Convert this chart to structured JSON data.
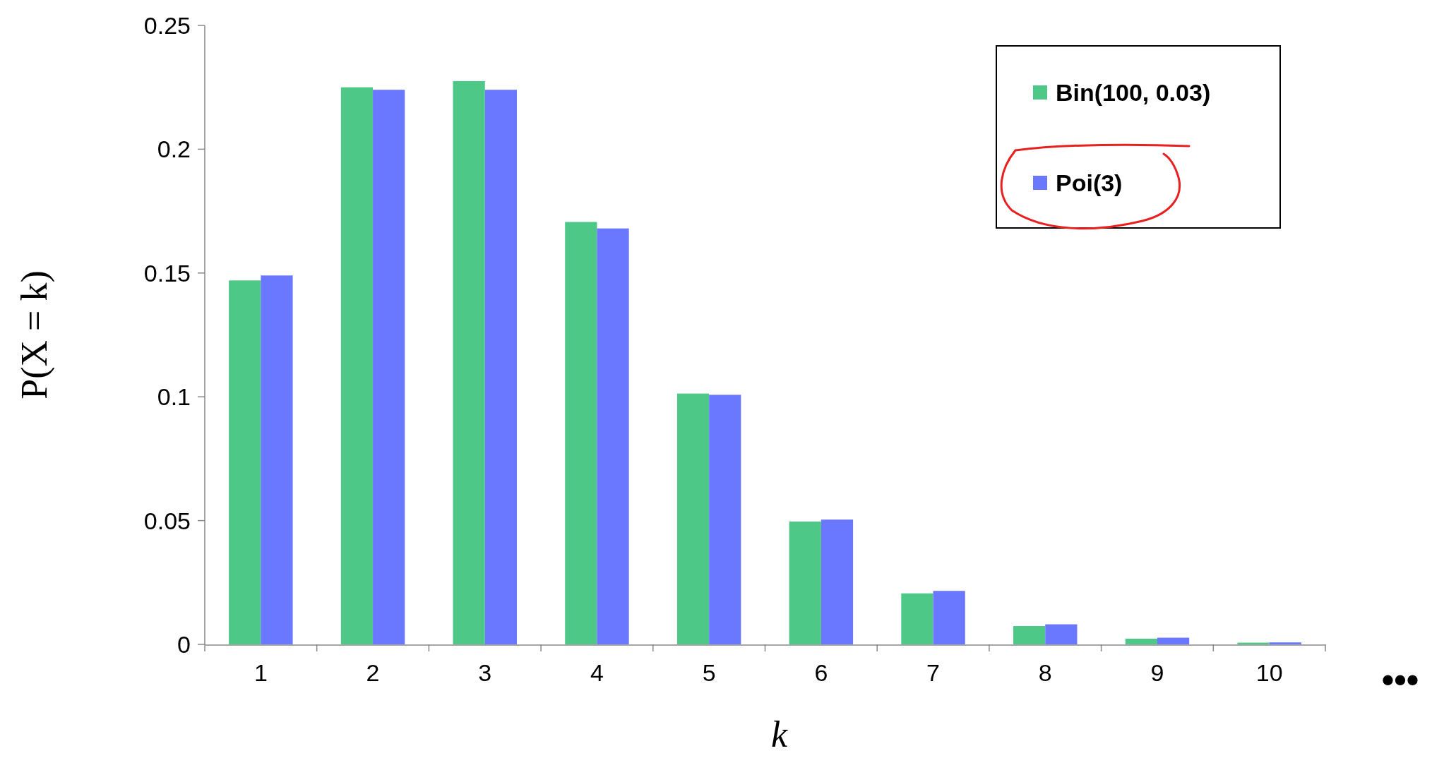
{
  "chart_data": {
    "type": "bar",
    "xlabel": "k",
    "ylabel": "P(X = k)",
    "categories": [
      "1",
      "2",
      "3",
      "4",
      "5",
      "6",
      "7",
      "8",
      "9",
      "10"
    ],
    "series": [
      {
        "name": "Bin(100, 0.03)",
        "color": "#4dc886",
        "values": [
          0.147,
          0.225,
          0.2275,
          0.1706,
          0.1013,
          0.0496,
          0.0206,
          0.0074,
          0.0023,
          0.0007
        ]
      },
      {
        "name": "Poi(3)",
        "color": "#6a77ff",
        "values": [
          0.149,
          0.224,
          0.224,
          0.168,
          0.1008,
          0.0504,
          0.0216,
          0.0081,
          0.0027,
          0.0008
        ]
      }
    ],
    "ylim": [
      0,
      0.25
    ],
    "yticks": [
      0,
      0.05,
      0.1,
      0.15,
      0.2,
      0.25
    ],
    "grid": false,
    "legend": "top right",
    "annotations": [
      "•••"
    ]
  }
}
